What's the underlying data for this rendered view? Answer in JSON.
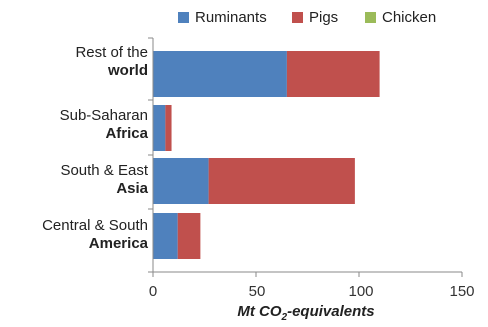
{
  "chart_data": {
    "type": "bar",
    "orientation": "horizontal",
    "stacked": true,
    "title": "",
    "xlabel": "",
    "xlabel_main": "Mt CO",
    "xlabel_sub": "2",
    "xlabel_suffix": "-equivalents",
    "xlim": [
      0,
      150
    ],
    "xticks": [
      "0",
      "50",
      "100",
      "150"
    ],
    "categories": [
      {
        "line1": "Rest of the",
        "line2": "world"
      },
      {
        "line1": "Sub-Saharan",
        "line2": "Africa"
      },
      {
        "line1": "South & East",
        "line2": "Asia"
      },
      {
        "line1": "Central & South",
        "line2": "America"
      }
    ],
    "series": [
      {
        "name": "Ruminants",
        "color": "#4f81bd",
        "values": [
          65,
          6,
          27,
          12
        ]
      },
      {
        "name": "Pigs",
        "color": "#c0504d",
        "values": [
          45,
          3,
          71,
          11
        ]
      },
      {
        "name": "Chicken",
        "color": "#9bbb59",
        "values": [
          0,
          0,
          0,
          0
        ]
      }
    ],
    "legend_position": "top",
    "grid": false
  }
}
